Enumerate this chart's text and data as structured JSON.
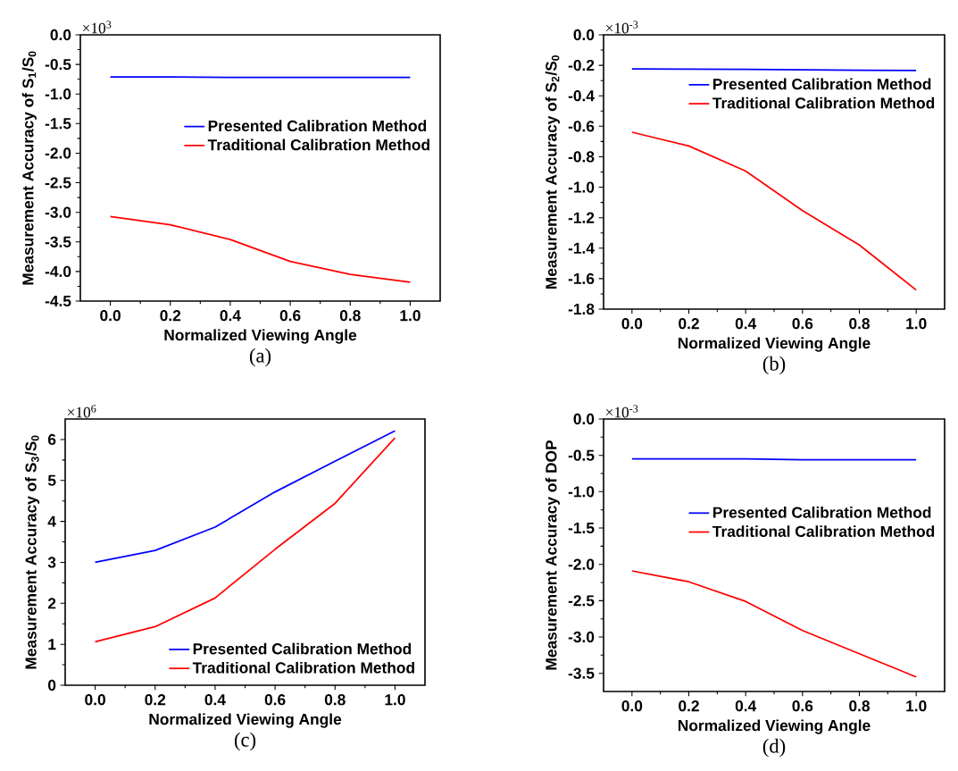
{
  "chart_data": [
    {
      "type": "line",
      "title": "(a)",
      "xlabel": "Normalized Viewing Angle",
      "ylabel": "Measurement Accuracy of S$_{1}$/S$_{0}$",
      "annotations": [
        "×10$^{3}$"
      ],
      "legend": "right",
      "x": [
        0,
        0.2,
        0.4,
        0.6,
        0.8,
        1.0
      ],
      "series": [
        {
          "name": "Presented Calibration Method",
          "color": "#0000ff",
          "values": [
            -0.71,
            -0.71,
            -0.72,
            -0.72,
            -0.72,
            -0.72
          ]
        },
        {
          "name": "Traditional Calibration Method",
          "color": "#ff0000",
          "values": [
            -3.07,
            -3.21,
            -3.46,
            -3.83,
            -4.05,
            -4.18
          ]
        }
      ],
      "xlim": [
        -0.1,
        1.1
      ],
      "ylim": [
        -4.5,
        0
      ],
      "xticks": [
        {
          "value": 0,
          "label": "0.0"
        },
        {
          "value": 0.2,
          "label": "0.2"
        },
        {
          "value": 0.4,
          "label": "0.4"
        },
        {
          "value": 0.6,
          "label": "0.6"
        },
        {
          "value": 0.8,
          "label": "0.8"
        },
        {
          "value": 1.0,
          "label": "1.0"
        }
      ],
      "yticks": [
        {
          "value": 0,
          "label": "0.0"
        },
        {
          "value": -0.5,
          "label": "-0.5"
        },
        {
          "value": -1.0,
          "label": "-1.0"
        },
        {
          "value": -1.5,
          "label": "-1.5"
        },
        {
          "value": -2.0,
          "label": "-2.0"
        },
        {
          "value": -2.5,
          "label": "-2.5"
        },
        {
          "value": -3.0,
          "label": "-3.0"
        },
        {
          "value": -3.5,
          "label": "-3.5"
        },
        {
          "value": -4.0,
          "label": "-4.0"
        },
        {
          "value": -4.5,
          "label": "-4.5"
        }
      ]
    },
    {
      "type": "line",
      "title": "(b)",
      "xlabel": "Normalized Viewing Angle",
      "ylabel": "Measurement Accuracy of S$_{2}$/S$_{0}$",
      "annotations": [
        "×10$^{-3}$"
      ],
      "legend": "top right",
      "x": [
        0,
        0.2,
        0.4,
        0.6,
        0.8,
        1.0
      ],
      "series": [
        {
          "name": "Presented Calibration Method",
          "color": "#0000ff",
          "values": [
            -0.224,
            -0.225,
            -0.227,
            -0.229,
            -0.232,
            -0.234
          ]
        },
        {
          "name": "Traditional Calibration Method",
          "color": "#ff0000",
          "values": [
            -0.639,
            -0.729,
            -0.894,
            -1.154,
            -1.379,
            -1.675
          ]
        }
      ],
      "xlim": [
        -0.1,
        1.1
      ],
      "ylim": [
        -1.8,
        0
      ],
      "xticks": [
        {
          "value": 0,
          "label": "0.0"
        },
        {
          "value": 0.2,
          "label": "0.2"
        },
        {
          "value": 0.4,
          "label": "0.4"
        },
        {
          "value": 0.6,
          "label": "0.6"
        },
        {
          "value": 0.8,
          "label": "0.8"
        },
        {
          "value": 1.0,
          "label": "1.0"
        }
      ],
      "yticks": [
        {
          "value": 0,
          "label": "0.0"
        },
        {
          "value": -0.2,
          "label": "-0.2"
        },
        {
          "value": -0.4,
          "label": "-0.4"
        },
        {
          "value": -0.6,
          "label": "-0.6"
        },
        {
          "value": -0.8,
          "label": "-0.8"
        },
        {
          "value": -1.0,
          "label": "-1.0"
        },
        {
          "value": -1.2,
          "label": "-1.2"
        },
        {
          "value": -1.4,
          "label": "-1.4"
        },
        {
          "value": -1.6,
          "label": "-1.6"
        },
        {
          "value": -1.8,
          "label": "-1.8"
        }
      ]
    },
    {
      "type": "line",
      "title": "(c)",
      "xlabel": "Normalized Viewing Angle",
      "ylabel": "Measurement Accuracy of S$_{3}$/S$_{0}$",
      "annotations": [
        "×10$^{6}$"
      ],
      "legend": "bottom right",
      "x": [
        0,
        0.2,
        0.4,
        0.6,
        0.8,
        1.0
      ],
      "series": [
        {
          "name": "Presented Calibration Method",
          "color": "#0000ff",
          "values": [
            3.0,
            3.29,
            3.86,
            4.72,
            5.47,
            6.21
          ]
        },
        {
          "name": "Traditional Calibration Method",
          "color": "#ff0000",
          "values": [
            1.06,
            1.43,
            2.13,
            3.32,
            4.44,
            6.04
          ]
        }
      ],
      "xlim": [
        -0.1,
        1.1
      ],
      "ylim": [
        0,
        6.5
      ],
      "xticks": [
        {
          "value": 0,
          "label": "0.0"
        },
        {
          "value": 0.2,
          "label": "0.2"
        },
        {
          "value": 0.4,
          "label": "0.4"
        },
        {
          "value": 0.6,
          "label": "0.6"
        },
        {
          "value": 0.8,
          "label": "0.8"
        },
        {
          "value": 1.0,
          "label": "1.0"
        }
      ],
      "yticks": [
        0,
        1,
        2,
        3,
        4,
        5,
        6
      ]
    },
    {
      "type": "line",
      "title": "(d)",
      "xlabel": "Normalized Viewing Angle",
      "ylabel": "Measurement Accuracy of DOP",
      "annotations": [
        "×10$^{-3}$"
      ],
      "legend": "right",
      "x": [
        0,
        0.2,
        0.4,
        0.6,
        0.8,
        1.0
      ],
      "series": [
        {
          "name": "Presented Calibration Method",
          "color": "#0000ff",
          "values": [
            -0.55,
            -0.55,
            -0.55,
            -0.56,
            -0.56,
            -0.56
          ]
        },
        {
          "name": "Traditional Calibration Method",
          "color": "#ff0000",
          "values": [
            -2.09,
            -2.24,
            -2.51,
            -2.91,
            -3.23,
            -3.55
          ]
        }
      ],
      "xlim": [
        -0.1,
        1.1
      ],
      "ylim": [
        -3.75,
        0
      ],
      "xticks": [
        {
          "value": 0,
          "label": "0.0"
        },
        {
          "value": 0.2,
          "label": "0.2"
        },
        {
          "value": 0.4,
          "label": "0.4"
        },
        {
          "value": 0.6,
          "label": "0.6"
        },
        {
          "value": 0.8,
          "label": "0.8"
        },
        {
          "value": 1.0,
          "label": "1.0"
        }
      ],
      "yticks": [
        {
          "value": 0,
          "label": "0.0"
        },
        {
          "value": -0.5,
          "label": "-0.5"
        },
        {
          "value": -1.0,
          "label": "-1.0"
        },
        {
          "value": -1.5,
          "label": "-1.5"
        },
        {
          "value": -2.0,
          "label": "-2.0"
        },
        {
          "value": -2.5,
          "label": "-2.5"
        },
        {
          "value": -3.0,
          "label": "-3.0"
        },
        {
          "value": -3.5,
          "label": "-3.5"
        }
      ]
    }
  ]
}
